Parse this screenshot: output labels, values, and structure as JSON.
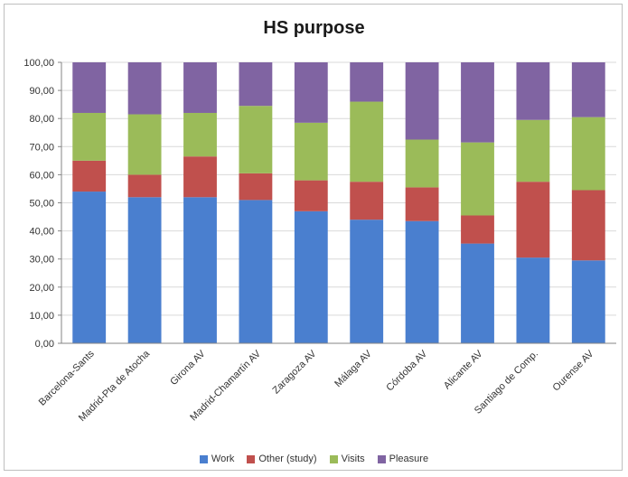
{
  "chart_data": {
    "type": "bar",
    "stacked": true,
    "title": "HS purpose",
    "xlabel": "",
    "ylabel": "",
    "ylim": [
      0,
      100
    ],
    "yticks": [
      "0,00",
      "10,00",
      "20,00",
      "30,00",
      "40,00",
      "50,00",
      "60,00",
      "70,00",
      "80,00",
      "90,00",
      "100,00"
    ],
    "grid": true,
    "legend_position": "bottom",
    "categories": [
      "Barcelona-Sants",
      "Madrid-Pta de Atocha",
      "Girona AV",
      "Madrid-Chamartín AV",
      "Zaragoza AV",
      "Málaga AV",
      "Córdoba AV",
      "Alicante AV",
      "Santiago de Comp.",
      "Ourense AV"
    ],
    "series": [
      {
        "name": "Work",
        "color": "#4a7fcf",
        "values": [
          54,
          52,
          52,
          51,
          47,
          44,
          43.5,
          35.5,
          30.5,
          29.5
        ]
      },
      {
        "name": "Other (study)",
        "color": "#c0504d",
        "values": [
          11,
          8,
          14.5,
          9.5,
          11,
          13.5,
          12,
          10,
          27,
          25
        ]
      },
      {
        "name": "Visits",
        "color": "#9bbb59",
        "values": [
          17,
          21.5,
          15.5,
          24,
          20.5,
          28.5,
          17,
          26,
          22,
          26
        ]
      },
      {
        "name": "Pleasure",
        "color": "#8064a2",
        "values": [
          18,
          18.5,
          18,
          15.5,
          21.5,
          14,
          27.5,
          28.5,
          20.5,
          19.5
        ]
      }
    ]
  }
}
